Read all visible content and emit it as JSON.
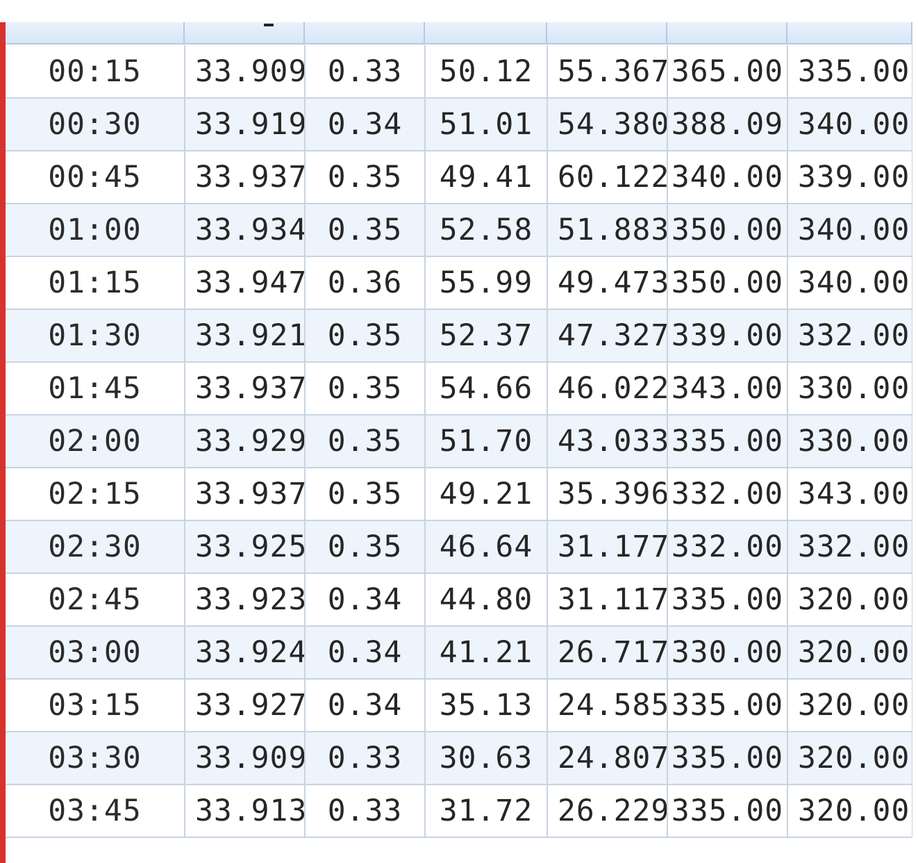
{
  "table": {
    "rows": [
      [
        "00:15",
        "33.909",
        "0.33",
        "50.12",
        "55.367",
        "365.00",
        "335.00"
      ],
      [
        "00:30",
        "33.919",
        "0.34",
        "51.01",
        "54.380",
        "388.09",
        "340.00"
      ],
      [
        "00:45",
        "33.937",
        "0.35",
        "49.41",
        "60.122",
        "340.00",
        "339.00"
      ],
      [
        "01:00",
        "33.934",
        "0.35",
        "52.58",
        "51.883",
        "350.00",
        "340.00"
      ],
      [
        "01:15",
        "33.947",
        "0.36",
        "55.99",
        "49.473",
        "350.00",
        "340.00"
      ],
      [
        "01:30",
        "33.921",
        "0.35",
        "52.37",
        "47.327",
        "339.00",
        "332.00"
      ],
      [
        "01:45",
        "33.937",
        "0.35",
        "54.66",
        "46.022",
        "343.00",
        "330.00"
      ],
      [
        "02:00",
        "33.929",
        "0.35",
        "51.70",
        "43.033",
        "335.00",
        "330.00"
      ],
      [
        "02:15",
        "33.937",
        "0.35",
        "49.21",
        "35.396",
        "332.00",
        "343.00"
      ],
      [
        "02:30",
        "33.925",
        "0.35",
        "46.64",
        "31.177",
        "332.00",
        "332.00"
      ],
      [
        "02:45",
        "33.923",
        "0.34",
        "44.80",
        "31.117",
        "335.00",
        "320.00"
      ],
      [
        "03:00",
        "33.924",
        "0.34",
        "41.21",
        "26.717",
        "330.00",
        "320.00"
      ],
      [
        "03:15",
        "33.927",
        "0.34",
        "35.13",
        "24.585",
        "335.00",
        "320.00"
      ],
      [
        "03:30",
        "33.909",
        "0.33",
        "30.63",
        "24.807",
        "335.00",
        "320.00"
      ],
      [
        "03:45",
        "33.913",
        "0.33",
        "31.72",
        "26.229",
        "335.00",
        "320.00"
      ]
    ]
  },
  "colors": {
    "grid_line": "#c7d4e2",
    "alt_row": "#eef4fb",
    "window_edge": "#d8322c",
    "text": "#262626"
  }
}
